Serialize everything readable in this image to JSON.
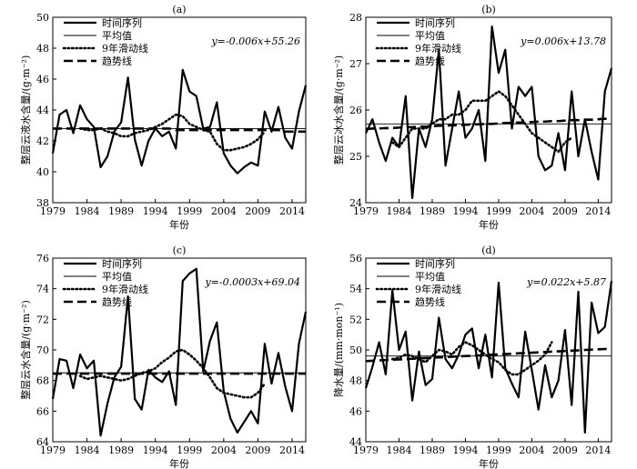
{
  "chart_data": [
    {
      "type": "line",
      "panel_label": "(a)",
      "xlabel": "年份",
      "ylabel": "整层云液水含量/(g·m⁻²)",
      "xlim": [
        1979,
        2016
      ],
      "ylim": [
        38,
        50
      ],
      "x_ticks": [
        1979,
        1984,
        1989,
        1994,
        1999,
        2004,
        2009,
        2014
      ],
      "y_ticks": [
        38,
        40,
        42,
        44,
        46,
        48,
        50
      ],
      "equation": "y=-0.006x+55.26",
      "x": [
        1979,
        1980,
        1981,
        1982,
        1983,
        1984,
        1985,
        1986,
        1987,
        1988,
        1989,
        1990,
        1991,
        1992,
        1993,
        1994,
        1995,
        1996,
        1997,
        1998,
        1999,
        2000,
        2001,
        2002,
        2003,
        2004,
        2005,
        2006,
        2007,
        2008,
        2009,
        2010,
        2011,
        2012,
        2013,
        2014,
        2015,
        2016
      ],
      "series": [
        {
          "name": "时间序列",
          "values": [
            41.2,
            43.7,
            44.0,
            42.5,
            44.3,
            43.4,
            42.9,
            40.3,
            41.0,
            42.6,
            43.2,
            46.1,
            42.1,
            40.4,
            42.0,
            42.8,
            42.3,
            42.6,
            41.5,
            46.6,
            45.2,
            44.9,
            42.8,
            42.9,
            44.5,
            41.2,
            40.4,
            39.9,
            40.3,
            40.6,
            40.4,
            43.9,
            42.6,
            44.2,
            42.2,
            41.5,
            43.9,
            45.6
          ]
        },
        {
          "name": "平均值",
          "values": [
            42.8,
            42.8,
            42.8,
            42.8,
            42.8,
            42.8,
            42.8,
            42.8,
            42.8,
            42.8,
            42.8,
            42.8,
            42.8,
            42.8,
            42.8,
            42.8,
            42.8,
            42.8,
            42.8,
            42.8,
            42.8,
            42.8,
            42.8,
            42.8,
            42.8,
            42.8,
            42.8,
            42.8,
            42.8,
            42.8,
            42.8,
            42.8,
            42.8,
            42.8,
            42.8,
            42.8,
            42.8,
            42.8
          ]
        },
        {
          "name": "9年滑动线",
          "values": [
            null,
            null,
            null,
            null,
            42.8,
            42.7,
            42.7,
            42.8,
            42.6,
            42.5,
            42.3,
            42.3,
            42.5,
            42.6,
            42.7,
            42.9,
            43.1,
            43.4,
            43.7,
            43.6,
            43.1,
            42.9,
            42.7,
            42.6,
            41.8,
            41.4,
            41.4,
            41.5,
            41.6,
            41.8,
            42.1,
            42.6,
            null,
            null,
            null,
            null,
            null,
            null
          ]
        },
        {
          "name": "趋势线",
          "values": [
            42.8,
            42.8,
            42.8,
            42.8,
            42.8,
            42.8,
            42.8,
            42.8,
            42.8,
            42.8,
            42.8,
            42.8,
            42.8,
            42.8,
            42.8,
            42.8,
            42.8,
            42.8,
            42.7,
            42.7,
            42.7,
            42.7,
            42.7,
            42.7,
            42.7,
            42.7,
            42.7,
            42.7,
            42.7,
            42.7,
            42.7,
            42.7,
            42.7,
            42.7,
            42.6,
            42.6,
            42.6,
            42.6
          ]
        }
      ]
    },
    {
      "type": "line",
      "panel_label": "(b)",
      "xlabel": "年份",
      "ylabel": "整层云冰水含量/(g·m⁻²)",
      "xlim": [
        1979,
        2016
      ],
      "ylim": [
        24,
        28
      ],
      "x_ticks": [
        1979,
        1984,
        1989,
        1994,
        1999,
        2004,
        2009,
        2014
      ],
      "y_ticks": [
        24,
        25,
        26,
        27,
        28
      ],
      "equation": "y=0.006x+13.78",
      "x": [
        1979,
        1980,
        1981,
        1982,
        1983,
        1984,
        1985,
        1986,
        1987,
        1988,
        1989,
        1990,
        1991,
        1992,
        1993,
        1994,
        1995,
        1996,
        1997,
        1998,
        1999,
        2000,
        2001,
        2002,
        2003,
        2004,
        2005,
        2006,
        2007,
        2008,
        2009,
        2010,
        2011,
        2012,
        2013,
        2014,
        2015,
        2016
      ],
      "series": [
        {
          "name": "时间序列",
          "values": [
            25.5,
            25.8,
            25.3,
            24.9,
            25.4,
            25.2,
            26.3,
            24.1,
            25.6,
            25.2,
            25.8,
            27.3,
            24.8,
            25.6,
            26.4,
            25.4,
            25.6,
            26.0,
            24.9,
            27.8,
            26.8,
            27.3,
            25.6,
            26.5,
            26.3,
            26.5,
            25.0,
            24.7,
            24.8,
            25.5,
            24.7,
            26.4,
            25.0,
            25.8,
            25.1,
            24.5,
            26.4,
            26.9
          ]
        },
        {
          "name": "平均值",
          "values": [
            25.7,
            25.7,
            25.7,
            25.7,
            25.7,
            25.7,
            25.7,
            25.7,
            25.7,
            25.7,
            25.7,
            25.7,
            25.7,
            25.7,
            25.7,
            25.7,
            25.7,
            25.7,
            25.7,
            25.7,
            25.7,
            25.7,
            25.7,
            25.7,
            25.7,
            25.7,
            25.7,
            25.7,
            25.7,
            25.7,
            25.7,
            25.7,
            25.7,
            25.7,
            25.7,
            25.7,
            25.7,
            25.7
          ]
        },
        {
          "name": "9年滑动线",
          "values": [
            null,
            null,
            null,
            null,
            25.3,
            25.2,
            25.4,
            25.6,
            25.6,
            25.6,
            25.7,
            25.8,
            25.8,
            25.9,
            25.9,
            26.0,
            26.2,
            26.2,
            26.2,
            26.3,
            26.4,
            26.3,
            26.1,
            25.9,
            25.7,
            25.5,
            25.4,
            25.3,
            25.2,
            25.1,
            25.3,
            25.4,
            null,
            null,
            null,
            null,
            null,
            null
          ]
        },
        {
          "name": "趋势线",
          "values": [
            25.59,
            25.6,
            25.6,
            25.61,
            25.61,
            25.62,
            25.63,
            25.63,
            25.64,
            25.64,
            25.65,
            25.66,
            25.66,
            25.67,
            25.67,
            25.68,
            25.69,
            25.69,
            25.7,
            25.7,
            25.71,
            25.72,
            25.72,
            25.73,
            25.73,
            25.74,
            25.75,
            25.75,
            25.76,
            25.76,
            25.77,
            25.78,
            25.78,
            25.79,
            25.79,
            25.8,
            25.81,
            25.81
          ]
        }
      ]
    },
    {
      "type": "line",
      "panel_label": "(c)",
      "xlabel": "年份",
      "ylabel": "整层云水含量/(g·m⁻²)",
      "xlim": [
        1979,
        2016
      ],
      "ylim": [
        64,
        76
      ],
      "x_ticks": [
        1979,
        1984,
        1989,
        1994,
        1999,
        2004,
        2009,
        2014
      ],
      "y_ticks": [
        64,
        66,
        68,
        70,
        72,
        74,
        76
      ],
      "equation": "y=-0.0003x+69.04",
      "x": [
        1979,
        1980,
        1981,
        1982,
        1983,
        1984,
        1985,
        1986,
        1987,
        1988,
        1989,
        1990,
        1991,
        1992,
        1993,
        1994,
        1995,
        1996,
        1997,
        1998,
        1999,
        2000,
        2001,
        2002,
        2003,
        2004,
        2005,
        2006,
        2007,
        2008,
        2009,
        2010,
        2011,
        2012,
        2013,
        2014,
        2015,
        2016
      ],
      "series": [
        {
          "name": "时间序列",
          "values": [
            66.8,
            69.4,
            69.3,
            67.5,
            69.7,
            68.8,
            69.3,
            64.4,
            66.5,
            68.2,
            68.9,
            73.5,
            66.8,
            66.1,
            68.7,
            68.2,
            67.9,
            68.6,
            66.4,
            74.5,
            75.0,
            75.3,
            68.6,
            70.6,
            71.8,
            67.3,
            65.5,
            64.6,
            65.3,
            66.0,
            65.2,
            70.4,
            67.8,
            69.8,
            67.6,
            66.0,
            70.4,
            72.5
          ]
        },
        {
          "name": "平均值",
          "values": [
            68.5,
            68.5,
            68.5,
            68.5,
            68.5,
            68.5,
            68.5,
            68.5,
            68.5,
            68.5,
            68.5,
            68.5,
            68.5,
            68.5,
            68.5,
            68.5,
            68.5,
            68.5,
            68.5,
            68.5,
            68.5,
            68.5,
            68.5,
            68.5,
            68.5,
            68.5,
            68.5,
            68.5,
            68.5,
            68.5,
            68.5,
            68.5,
            68.5,
            68.5,
            68.5,
            68.5,
            68.5,
            68.5
          ]
        },
        {
          "name": "9年滑动线",
          "values": [
            null,
            null,
            null,
            null,
            68.3,
            68.1,
            68.2,
            68.3,
            68.2,
            68.1,
            68.0,
            68.1,
            68.3,
            68.5,
            68.6,
            68.8,
            69.2,
            69.5,
            69.9,
            70.0,
            69.7,
            69.3,
            68.8,
            68.2,
            67.5,
            67.2,
            67.1,
            67.0,
            66.9,
            66.9,
            67.2,
            67.8,
            null,
            null,
            null,
            null,
            null,
            null
          ]
        },
        {
          "name": "趋势线",
          "values": [
            68.45,
            68.45,
            68.45,
            68.45,
            68.45,
            68.45,
            68.45,
            68.45,
            68.45,
            68.45,
            68.45,
            68.45,
            68.45,
            68.45,
            68.45,
            68.45,
            68.45,
            68.45,
            68.45,
            68.45,
            68.45,
            68.45,
            68.45,
            68.45,
            68.45,
            68.45,
            68.45,
            68.45,
            68.45,
            68.45,
            68.45,
            68.45,
            68.45,
            68.45,
            68.45,
            68.45,
            68.45,
            68.45
          ]
        }
      ]
    },
    {
      "type": "line",
      "panel_label": "(d)",
      "xlabel": "年份",
      "ylabel": "降水量/(mm·mon⁻¹)",
      "xlim": [
        1979,
        2016
      ],
      "ylim": [
        44,
        56
      ],
      "x_ticks": [
        1979,
        1984,
        1989,
        1994,
        1999,
        2004,
        2009,
        2014
      ],
      "y_ticks": [
        44,
        46,
        48,
        50,
        52,
        54,
        56
      ],
      "equation": "y=0.022x+5.87",
      "x": [
        1979,
        1980,
        1981,
        1982,
        1983,
        1984,
        1985,
        1986,
        1987,
        1988,
        1989,
        1990,
        1991,
        1992,
        1993,
        1994,
        1995,
        1996,
        1997,
        1998,
        1999,
        2000,
        2001,
        2002,
        2003,
        2004,
        2005,
        2006,
        2007,
        2008,
        2009,
        2010,
        2011,
        2012,
        2013,
        2014,
        2015,
        2016
      ],
      "series": [
        {
          "name": "时间序列",
          "values": [
            47.5,
            48.9,
            50.5,
            48.4,
            53.9,
            50.0,
            51.2,
            46.7,
            49.9,
            47.7,
            48.1,
            52.1,
            49.4,
            48.8,
            49.7,
            51.0,
            51.4,
            48.8,
            51.0,
            48.2,
            54.4,
            48.8,
            47.8,
            46.9,
            51.2,
            48.7,
            46.1,
            49.0,
            46.9,
            48.0,
            51.3,
            46.4,
            53.8,
            44.6,
            53.1,
            51.1,
            51.5,
            54.5
          ]
        },
        {
          "name": "平均值",
          "values": [
            49.6,
            49.6,
            49.6,
            49.6,
            49.6,
            49.6,
            49.6,
            49.6,
            49.6,
            49.6,
            49.6,
            49.6,
            49.6,
            49.6,
            49.6,
            49.6,
            49.6,
            49.6,
            49.6,
            49.6,
            49.6,
            49.6,
            49.6,
            49.6,
            49.6,
            49.6,
            49.6,
            49.6,
            49.6,
            49.6,
            49.6,
            49.6,
            49.6,
            49.6,
            49.6,
            49.6,
            49.6,
            49.6
          ]
        },
        {
          "name": "9年滑动线",
          "values": [
            null,
            null,
            null,
            null,
            49.4,
            49.5,
            49.7,
            49.6,
            49.4,
            49.2,
            49.6,
            50.0,
            49.9,
            49.7,
            50.2,
            50.5,
            50.3,
            50.0,
            49.7,
            49.4,
            49.2,
            48.7,
            48.4,
            48.4,
            48.7,
            49.0,
            49.3,
            49.7,
            50.5,
            null,
            null,
            null,
            null,
            null,
            null,
            null,
            null,
            null
          ]
        },
        {
          "name": "趋势线",
          "values": [
            49.27,
            49.29,
            49.31,
            49.34,
            49.36,
            49.38,
            49.4,
            49.42,
            49.45,
            49.47,
            49.49,
            49.51,
            49.53,
            49.56,
            49.58,
            49.6,
            49.62,
            49.64,
            49.67,
            49.69,
            49.71,
            49.73,
            49.75,
            49.78,
            49.8,
            49.82,
            49.84,
            49.86,
            49.89,
            49.91,
            49.93,
            49.95,
            49.97,
            50.0,
            50.02,
            50.04,
            50.06,
            50.08
          ]
        }
      ]
    }
  ]
}
